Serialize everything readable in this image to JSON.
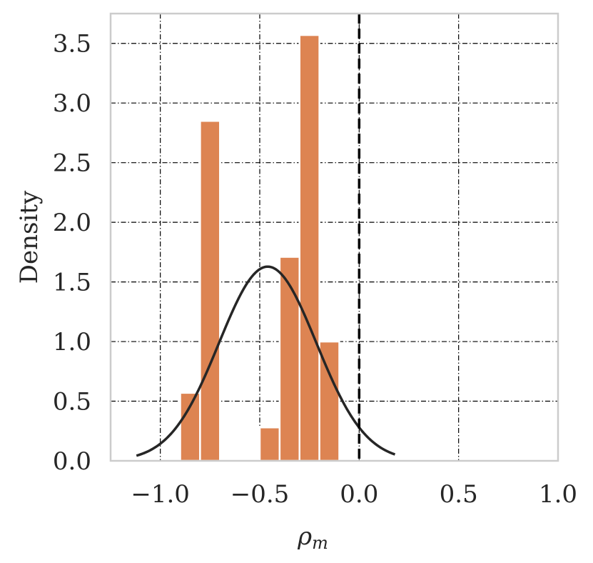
{
  "chart_data": {
    "type": "bar",
    "title": "",
    "xlabel": "ρ",
    "xlabel_subscript": "m",
    "ylabel": "Density",
    "xlim": [
      -1.25,
      1.0
    ],
    "ylim": [
      0.0,
      3.75
    ],
    "xticks": [
      -1.0,
      -0.5,
      0.0,
      0.5,
      1.0
    ],
    "xtick_labels": [
      "−1.0",
      "−0.5",
      "0.0",
      "0.5",
      "1.0"
    ],
    "yticks": [
      0.0,
      0.5,
      1.0,
      1.5,
      2.0,
      2.5,
      3.0,
      3.5
    ],
    "ytick_labels": [
      "0.0",
      "0.5",
      "1.0",
      "1.5",
      "2.0",
      "2.5",
      "3.0",
      "3.5"
    ],
    "grid": true,
    "histogram": {
      "color": "#dd8452",
      "bin_width": 0.1,
      "bins": [
        {
          "left": -0.9,
          "right": -0.8,
          "density": 0.57
        },
        {
          "left": -0.8,
          "right": -0.7,
          "density": 2.85
        },
        {
          "left": -0.5,
          "right": -0.4,
          "density": 0.28
        },
        {
          "left": -0.4,
          "right": -0.3,
          "density": 1.71
        },
        {
          "left": -0.3,
          "right": -0.2,
          "density": 3.57
        },
        {
          "left": -0.2,
          "right": -0.1,
          "density": 1.0
        }
      ]
    },
    "density_curve": {
      "type": "normal",
      "mean": -0.46,
      "std": 0.245,
      "x_range": [
        -1.12,
        0.18
      ],
      "color": "#262626"
    },
    "reference_line": {
      "x": 0.0,
      "style": "dashed",
      "color": "#000000"
    }
  }
}
